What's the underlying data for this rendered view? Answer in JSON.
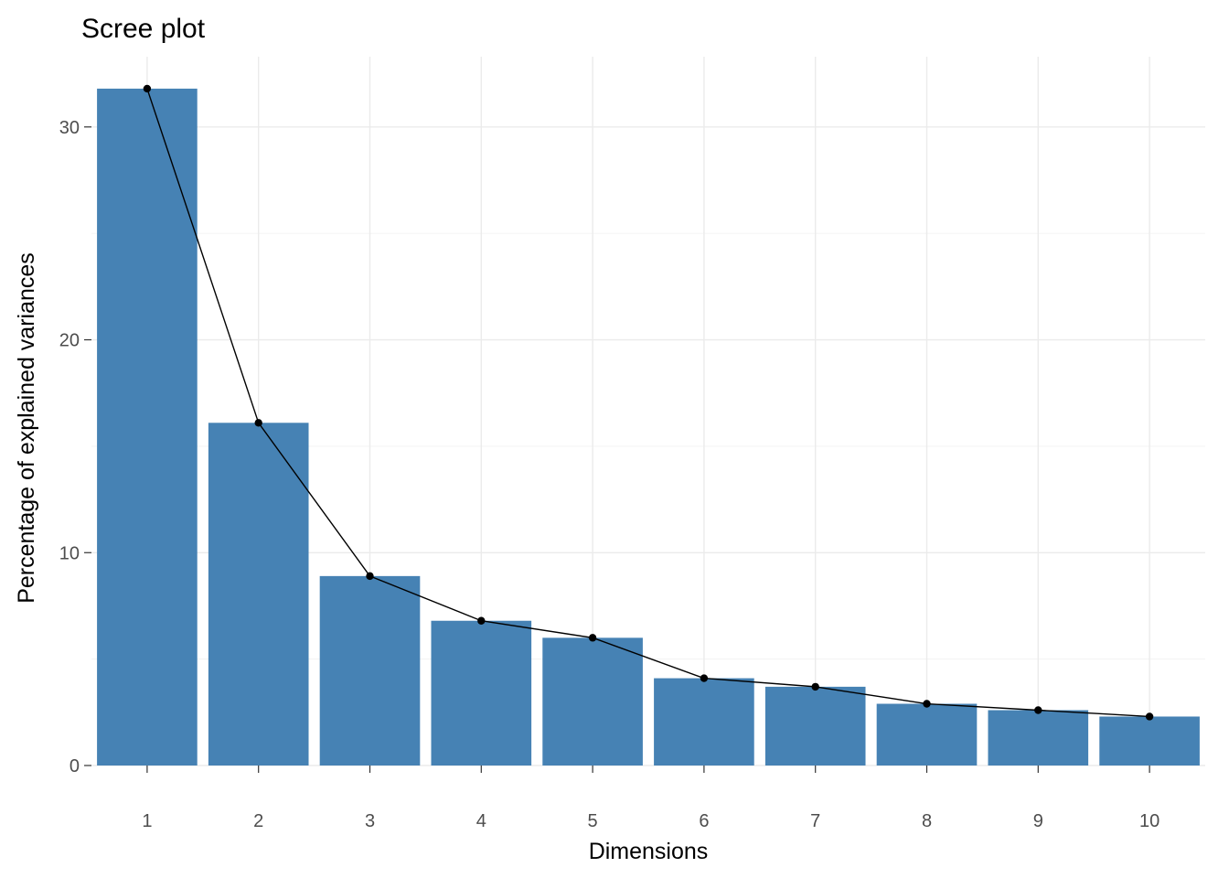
{
  "chart_data": {
    "type": "bar",
    "title": "Scree plot",
    "xlabel": "Dimensions",
    "ylabel": "Percentage of explained variances",
    "categories": [
      "1",
      "2",
      "3",
      "4",
      "5",
      "6",
      "7",
      "8",
      "9",
      "10"
    ],
    "values": [
      31.8,
      16.1,
      8.9,
      6.8,
      6.0,
      4.1,
      3.7,
      2.9,
      2.6,
      2.3
    ],
    "line_overlay": true,
    "ylim": [
      0,
      33.3
    ],
    "yticks": [
      0,
      10,
      20,
      30
    ],
    "grid": true,
    "colors": {
      "bar": "#4682b4",
      "line": "#000000",
      "point": "#000000"
    }
  }
}
